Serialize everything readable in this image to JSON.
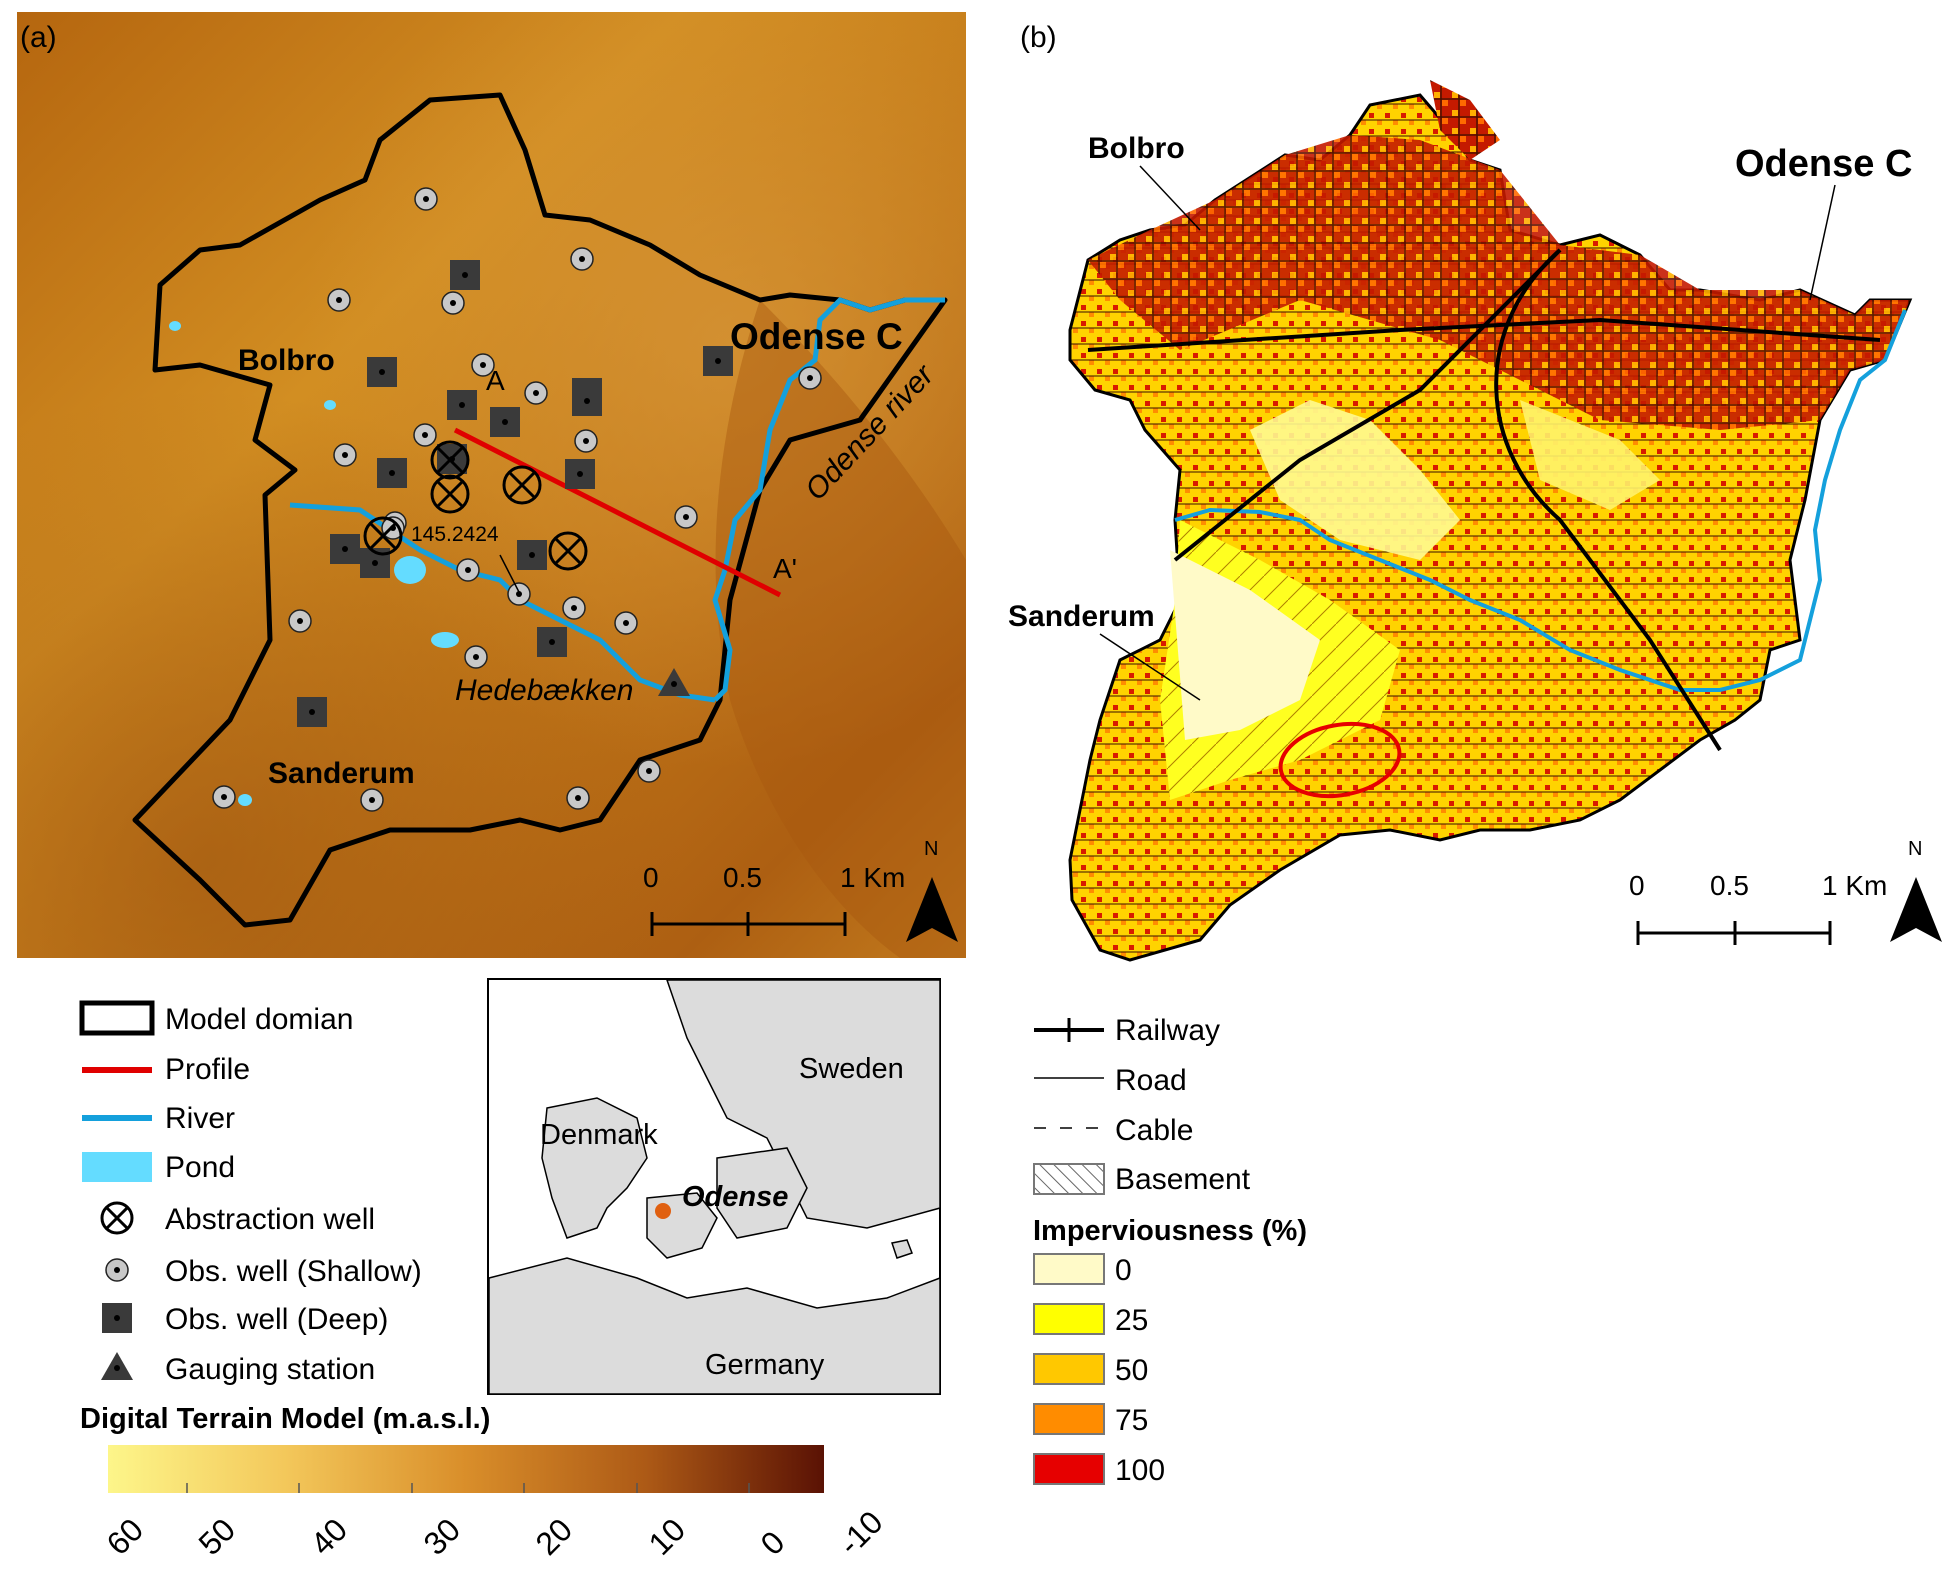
{
  "panel_a": {
    "label": "(a)",
    "places": {
      "bolbro": "Bolbro",
      "sanderum": "Sanderum",
      "odense_c": "Odense C"
    },
    "river_label": "Odense river",
    "stream_label": "Hedebækken",
    "profile_start": "A",
    "profile_end": "A'",
    "well_id": "145.2424",
    "scalebar": {
      "t0": "0",
      "t1": "0.5",
      "t2": "1 Km"
    },
    "north": "N"
  },
  "panel_b": {
    "label": "(b)",
    "places": {
      "bolbro": "Bolbro",
      "sanderum": "Sanderum",
      "odense_c": "Odense C"
    },
    "scalebar": {
      "t0": "0",
      "t1": "0.5",
      "t2": "1 Km"
    },
    "north": "N"
  },
  "legend_a": [
    "Model domian",
    "Profile",
    "River",
    "Pond",
    "Abstraction well",
    "Obs. well (Shallow)",
    "Obs. well (Deep)",
    "Gauging station"
  ],
  "dtm": {
    "title": "Digital Terrain Model (m.a.s.l.)",
    "ticks": [
      "60",
      "50",
      "40",
      "30",
      "20",
      "10",
      "0",
      "-10"
    ]
  },
  "inset": {
    "sweden": "Sweden",
    "denmark": "Denmark",
    "odense": "Odense",
    "germany": "Germany"
  },
  "legend_b": {
    "lines": [
      "Railway",
      "Road",
      "Cable",
      "Basement"
    ],
    "title": "Imperviousness (%)",
    "classes": [
      "0",
      "25",
      "50",
      "75",
      "100"
    ],
    "class_colors": [
      "#fffac8",
      "#ffff00",
      "#ffc800",
      "#ff8c00",
      "#e60000"
    ]
  },
  "colors": {
    "river": "#14a0dc",
    "pond": "#64dcff",
    "profile": "#e00000",
    "dtm_low": "#fdf27a",
    "dtm_high": "#5a1204"
  }
}
